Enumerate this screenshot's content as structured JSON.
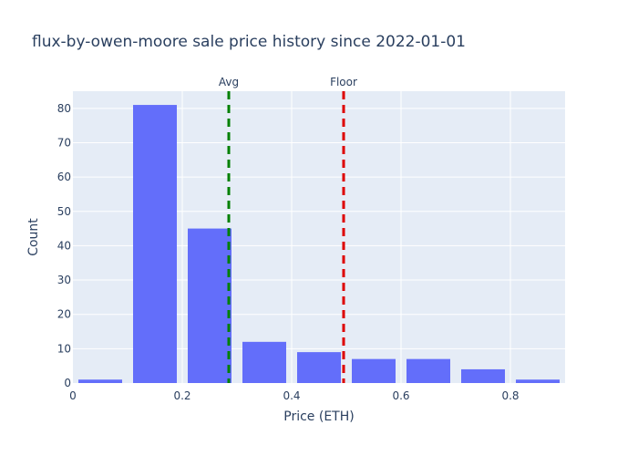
{
  "chart_data": {
    "type": "bar",
    "title": "flux-by-owen-moore sale price history since 2022-01-01",
    "xlabel": "Price (ETH)",
    "ylabel": "Count",
    "xlim": [
      0,
      0.9
    ],
    "ylim": [
      0,
      85
    ],
    "x_ticks": [
      0,
      0.2,
      0.4,
      0.6,
      0.8
    ],
    "x_tick_labels": [
      "0",
      "0.2",
      "0.4",
      "0.6",
      "0.8"
    ],
    "y_ticks": [
      0,
      10,
      20,
      30,
      40,
      50,
      60,
      70,
      80
    ],
    "y_tick_labels": [
      "0",
      "10",
      "20",
      "30",
      "40",
      "50",
      "60",
      "70",
      "80"
    ],
    "grid": true,
    "bins": [
      {
        "x0": 0.0,
        "x1": 0.1,
        "count": 1
      },
      {
        "x0": 0.1,
        "x1": 0.2,
        "count": 81
      },
      {
        "x0": 0.2,
        "x1": 0.3,
        "count": 45
      },
      {
        "x0": 0.3,
        "x1": 0.4,
        "count": 12
      },
      {
        "x0": 0.4,
        "x1": 0.5,
        "count": 9
      },
      {
        "x0": 0.5,
        "x1": 0.6,
        "count": 7
      },
      {
        "x0": 0.6,
        "x1": 0.7,
        "count": 7
      },
      {
        "x0": 0.7,
        "x1": 0.8,
        "count": 4
      },
      {
        "x0": 0.8,
        "x1": 0.9,
        "count": 1
      }
    ],
    "bar_color": "#636efa",
    "reference_lines": [
      {
        "name": "avg-line",
        "label": "Avg",
        "x": 0.285,
        "color": "#008000"
      },
      {
        "name": "floor-line",
        "label": "Floor",
        "x": 0.495,
        "color": "#dd0000"
      }
    ],
    "plot_bgcolor": "#e5ecf6",
    "grid_color": "#ffffff"
  }
}
